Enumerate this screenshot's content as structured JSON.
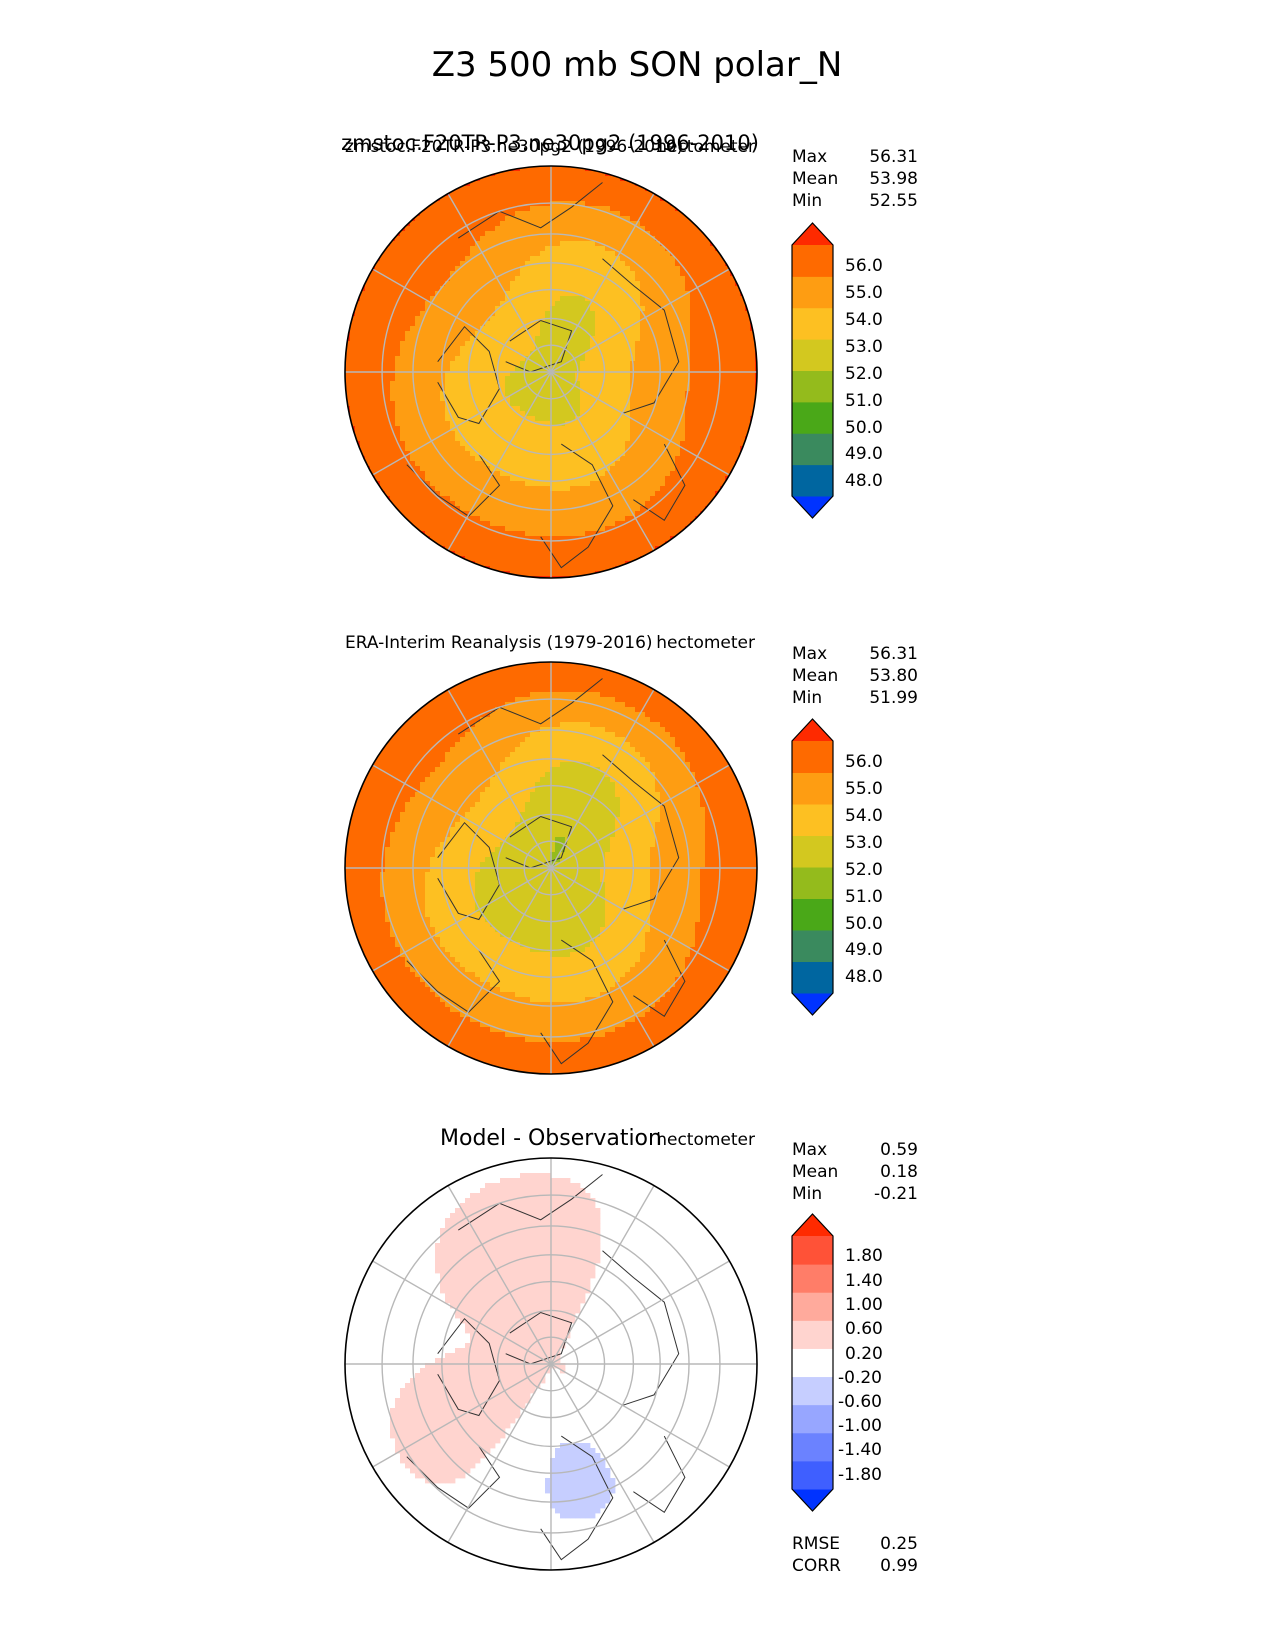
{
  "title": "Z3 500 mb SON polar_N",
  "colors": {
    "abs_levels": [
      "#0033ff",
      "#0066a0",
      "#3a8a5e",
      "#4aa818",
      "#94bb1c",
      "#d3c81f",
      "#fdc022",
      "#fe9d12",
      "#fe6a00",
      "#fe2a00"
    ],
    "diff_levels": [
      "#0033ff",
      "#3f5fff",
      "#6b82ff",
      "#97a6ff",
      "#c6ceff",
      "#ffffff",
      "#ffd4cf",
      "#ffaa9c",
      "#ff7d68",
      "#ff5237",
      "#ff2a00"
    ],
    "grid": "#b8b8b8",
    "coast": "#333333"
  },
  "chart_data": [
    {
      "type": "heatmap",
      "panel": "test",
      "title_left": "zmstoc.F20TR-P3.ne30pg2 (1996-2010)",
      "title_center": "zmstoc.F20TR-P3.ne30pg2 (1996-2010)",
      "title_right": "hectometer",
      "stats": {
        "labels": [
          "Max",
          "Mean",
          "Min"
        ],
        "values": [
          "56.31",
          "53.98",
          "52.55"
        ],
        "numeric": [
          56.31,
          53.98,
          52.55
        ]
      },
      "colorbar_ticks": [
        "56.0",
        "55.0",
        "54.0",
        "53.0",
        "52.0",
        "51.0",
        "50.0",
        "49.0",
        "48.0"
      ],
      "colorbar_levels": [
        48.0,
        49.0,
        50.0,
        51.0,
        52.0,
        53.0,
        54.0,
        55.0,
        56.0
      ],
      "projection": "north polar stereographic",
      "field_model": {
        "pole": 52.6,
        "equator_edge": 56.0,
        "wave_amplitude": 0.6
      }
    },
    {
      "type": "heatmap",
      "panel": "reference",
      "title_left": "ERA-Interim Reanalysis (1979-2016)",
      "title_right": "hectometer",
      "stats": {
        "labels": [
          "Max",
          "Mean",
          "Min"
        ],
        "values": [
          "56.31",
          "53.80",
          "51.99"
        ],
        "numeric": [
          56.31,
          53.8,
          51.99
        ]
      },
      "colorbar_ticks": [
        "56.0",
        "55.0",
        "54.0",
        "53.0",
        "52.0",
        "51.0",
        "50.0",
        "49.0",
        "48.0"
      ],
      "colorbar_levels": [
        48.0,
        49.0,
        50.0,
        51.0,
        52.0,
        53.0,
        54.0,
        55.0,
        56.0
      ],
      "projection": "north polar stereographic",
      "field_model": {
        "pole": 52.0,
        "equator_edge": 55.9,
        "wave_amplitude": 0.7
      }
    },
    {
      "type": "heatmap",
      "panel": "difference",
      "title_center": "Model - Observation",
      "title_right": "hectometer",
      "stats": {
        "labels": [
          "Max",
          "Mean",
          "Min"
        ],
        "values": [
          "0.59",
          "0.18",
          "-0.21"
        ],
        "numeric": [
          0.59,
          0.18,
          -0.21
        ]
      },
      "colorbar_ticks": [
        "1.80",
        "1.40",
        "1.00",
        "0.60",
        "0.20",
        "-0.20",
        "-0.60",
        "-1.00",
        "-1.40",
        "-1.80"
      ],
      "colorbar_levels": [
        -1.8,
        -1.4,
        -1.0,
        -0.6,
        -0.2,
        0.2,
        0.6,
        1.0,
        1.4,
        1.8
      ],
      "metrics": {
        "labels": [
          "RMSE",
          "CORR"
        ],
        "values": [
          "0.25",
          "0.99"
        ]
      },
      "projection": "north polar stereographic"
    }
  ]
}
